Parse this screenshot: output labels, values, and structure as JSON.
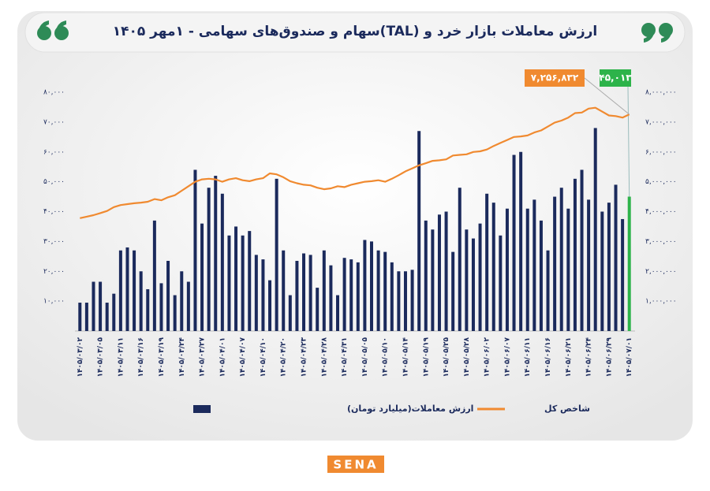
{
  "chart_data": {
    "type": "bar_line",
    "title": "ارزش معاملات بازار خرد و (TAL)سهام و صندوق‌های سهامی - ۱مهر ۱۴۰۵",
    "logo": "SENA",
    "categories": [
      "۱۴۰۵/۰۳/۰۲",
      null,
      null,
      "۱۴۰۵/۰۳/۰۵",
      null,
      null,
      "۱۴۰۵/۰۳/۱۱",
      null,
      null,
      "۱۴۰۵/۰۳/۱۶",
      null,
      null,
      "۱۴۰۵/۰۳/۱۹",
      null,
      null,
      "۱۴۰۵/۰۳/۲۴",
      null,
      null,
      "۱۴۰۵/۰۳/۲۷",
      null,
      null,
      "۱۴۰۵/۰۴/۰۱",
      null,
      null,
      "۱۴۰۵/۰۴/۰۷",
      null,
      null,
      "۱۴۰۵/۰۴/۱۰",
      null,
      null,
      "۱۴۰۵/۰۴/۲۰",
      null,
      null,
      "۱۴۰۵/۰۴/۲۳",
      null,
      null,
      "۱۴۰۵/۰۴/۲۸",
      null,
      null,
      "۱۴۰۵/۰۴/۳۱",
      null,
      null,
      "۱۴۰۵/۰۵/۰۵",
      null,
      null,
      "۱۴۰۵/۰۵/۱۰",
      null,
      null,
      "۱۴۰۵/۰۵/۱۴",
      null,
      null,
      "۱۴۰۵/۰۵/۱۹",
      null,
      null,
      "۱۴۰۵/۰۵/۲۵",
      null,
      null,
      "۱۴۰۵/۰۵/۲۸",
      null,
      null,
      "۱۴۰۵/۰۶/۰۲",
      null,
      null,
      "۱۴۰۵/۰۶/۰۷",
      null,
      null,
      "۱۴۰۵/۰۶/۱۱",
      null,
      null,
      "۱۴۰۵/۰۶/۱۶",
      null,
      null,
      "۱۴۰۵/۰۶/۲۱",
      null,
      null,
      "۱۴۰۵/۰۶/۲۴",
      null,
      null,
      "۱۴۰۵/۰۶/۲۹",
      null,
      null,
      "۱۴۰۵/۰۷/۰۱"
    ],
    "series": [
      {
        "name": "ارزش معاملات(میلیارد تومان)",
        "type": "bar",
        "axis": "y",
        "color": "#1b2a5c",
        "highlight": {
          "label": "۴۵,۰۱۳",
          "color": "#2db34a"
        },
        "values": [
          9500,
          9500,
          16500,
          16500,
          9500,
          12500,
          27000,
          28000,
          27000,
          20000,
          14000,
          37000,
          16000,
          23500,
          12000,
          20000,
          16500,
          54000,
          36000,
          48000,
          52000,
          46000,
          32000,
          35000,
          32000,
          33500,
          25500,
          24000,
          17000,
          51000,
          27000,
          12000,
          23500,
          26000,
          25500,
          14500,
          27000,
          22000,
          12000,
          24500,
          24000,
          23000,
          30500,
          30000,
          27000,
          26500,
          23000,
          20000,
          20000,
          20500,
          67000,
          37000,
          34000,
          39000,
          40000,
          26500,
          48000,
          34000,
          31000,
          36000,
          46000,
          43000,
          32000,
          41000,
          59000,
          60000,
          41000,
          44000,
          37000,
          27000,
          45000,
          48000,
          41000,
          51000,
          54000,
          44000,
          68000,
          40000,
          43000,
          49000,
          37500,
          45013
        ]
      },
      {
        "name": "شاخص کل",
        "type": "line",
        "axis": "y2",
        "color": "#f08a30",
        "highlight": {
          "label": "۷,۲۵۶,۸۳۲",
          "color": "#f08a30"
        },
        "values": [
          3780000,
          3830000,
          3880000,
          3950000,
          4020000,
          4150000,
          4220000,
          4250000,
          4280000,
          4300000,
          4330000,
          4420000,
          4380000,
          4480000,
          4550000,
          4700000,
          4850000,
          5000000,
          5080000,
          5100000,
          5080000,
          5000000,
          5080000,
          5120000,
          5050000,
          5020000,
          5080000,
          5120000,
          5280000,
          5250000,
          5150000,
          5020000,
          4950000,
          4900000,
          4880000,
          4800000,
          4750000,
          4780000,
          4850000,
          4820000,
          4900000,
          4950000,
          5000000,
          5020000,
          5050000,
          5000000,
          5100000,
          5220000,
          5350000,
          5450000,
          5550000,
          5620000,
          5700000,
          5720000,
          5750000,
          5880000,
          5900000,
          5920000,
          6000000,
          6020000,
          6080000,
          6200000,
          6300000,
          6400000,
          6500000,
          6520000,
          6550000,
          6650000,
          6720000,
          6850000,
          6980000,
          7050000,
          7150000,
          7300000,
          7320000,
          7450000,
          7480000,
          7350000,
          7220000,
          7200000,
          7150000,
          7256832
        ]
      }
    ],
    "ylim": [
      0,
      80000
    ],
    "yticks": [
      {
        "value": 10000,
        "label": "۱۰,۰۰۰"
      },
      {
        "value": 20000,
        "label": "۲۰,۰۰۰"
      },
      {
        "value": 30000,
        "label": "۳۰,۰۰۰"
      },
      {
        "value": 40000,
        "label": "۴۰,۰۰۰"
      },
      {
        "value": 50000,
        "label": "۵۰,۰۰۰"
      },
      {
        "value": 60000,
        "label": "۶۰,۰۰۰"
      },
      {
        "value": 70000,
        "label": "۷۰,۰۰۰"
      },
      {
        "value": 80000,
        "label": "۸۰,۰۰۰"
      }
    ],
    "y2lim": [
      0,
      8000000
    ],
    "y2ticks": [
      {
        "value": 1000000,
        "label": "۱,۰۰۰,۰۰۰"
      },
      {
        "value": 2000000,
        "label": "۲,۰۰۰,۰۰۰"
      },
      {
        "value": 3000000,
        "label": "۳,۰۰۰,۰۰۰"
      },
      {
        "value": 4000000,
        "label": "۴,۰۰۰,۰۰۰"
      },
      {
        "value": 5000000,
        "label": "۵,۰۰۰,۰۰۰"
      },
      {
        "value": 6000000,
        "label": "۶,۰۰۰,۰۰۰"
      },
      {
        "value": 7000000,
        "label": "۷,۰۰۰,۰۰۰"
      },
      {
        "value": 8000000,
        "label": "۸,۰۰۰,۰۰۰"
      }
    ],
    "grid": false
  }
}
